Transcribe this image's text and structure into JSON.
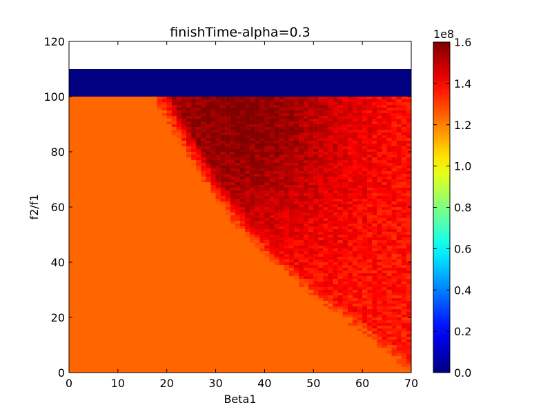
{
  "chart_data": {
    "type": "heatmap",
    "title": "finishTime-alpha=0.3",
    "xlabel": "Beta1",
    "ylabel": "f2/f1",
    "xlim": [
      0,
      70
    ],
    "ylim": [
      0,
      120
    ],
    "x_ticks": [
      0,
      10,
      20,
      30,
      40,
      50,
      60,
      70
    ],
    "y_ticks": [
      0,
      20,
      40,
      60,
      80,
      100,
      120
    ],
    "x_tick_labels": [
      "0",
      "10",
      "20",
      "30",
      "40",
      "50",
      "60",
      "70"
    ],
    "y_tick_labels": [
      "0",
      "20",
      "40",
      "60",
      "80",
      "100",
      "120"
    ],
    "grid": false,
    "colormap": "jet",
    "colorbar": {
      "min": 0.0,
      "max": 1.6,
      "scale_label": "1e8",
      "ticks": [
        0.0,
        0.2,
        0.4,
        0.6,
        0.8,
        1.0,
        1.2,
        1.4,
        1.6
      ],
      "tick_labels": [
        "0.0",
        "0.2",
        "0.4",
        "0.6",
        "0.8",
        "1.0",
        "1.2",
        "1.4",
        "1.6"
      ]
    },
    "regions": {
      "baseline_value": 1.24,
      "top_band": {
        "y_range": [
          100,
          110
        ],
        "value": 0.0
      },
      "empty_above": 110,
      "peak_value": 1.6,
      "peak_location": {
        "beta1": 35,
        "f2_f1": 95
      },
      "boundary_curve_beta1_vs_f2f1": [
        [
          17,
          100
        ],
        [
          22,
          85
        ],
        [
          27,
          70
        ],
        [
          33,
          55
        ],
        [
          40,
          42
        ],
        [
          50,
          27
        ],
        [
          60,
          14
        ],
        [
          70,
          0
        ]
      ]
    }
  }
}
